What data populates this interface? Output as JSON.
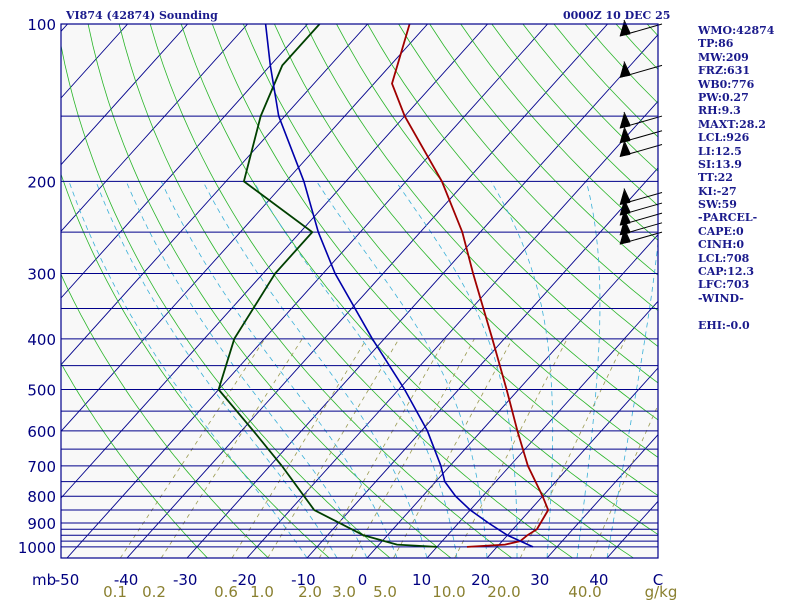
{
  "header": {
    "station": "VI874 (42874) Sounding",
    "time": "0000Z 10 DEC 25"
  },
  "panel": [
    "WMO:42874",
    "TP:86",
    "MW:209",
    "FRZ:631",
    "WB0:776",
    "PW:0.27",
    "RH:9.3",
    "MAXT:28.2",
    "LCL:926",
    "LI:12.5",
    "SI:13.9",
    "TT:22",
    "KI:-27",
    "SW:59",
    "-PARCEL-",
    "CAPE:0",
    "CINH:0",
    "LCL:708",
    "CAP:12.3",
    "LFC:703",
    "-WIND-",
    "",
    "EHI:-0.0"
  ],
  "colors": {
    "background": "#f8f8f8",
    "isobar": "#00008b",
    "isotherm": "#00008b",
    "dry_adiabat": "#2ab52a",
    "moist_adiabat": "#3ab0d8",
    "mixing_ratio": "#9a9a50",
    "temperature": "#a00000",
    "dewpoint": "#004000",
    "parcel": "#0000aa",
    "wind": "#000000",
    "axis_text": "#000080",
    "mixing_text": "#8a8030"
  },
  "chart_data": {
    "type": "line",
    "title": "",
    "xlabel": "",
    "ylabel": "mb",
    "pressure_ticks": [
      100,
      200,
      300,
      400,
      500,
      600,
      700,
      800,
      900,
      1000
    ],
    "isobars": [
      100,
      150,
      200,
      250,
      300,
      350,
      400,
      450,
      500,
      550,
      600,
      650,
      700,
      750,
      800,
      850,
      900,
      925,
      950,
      975,
      1000
    ],
    "temperature_ticks": [
      "-50",
      "-40",
      "-30",
      "-20",
      "-10",
      "0",
      "10",
      "20",
      "30",
      "40",
      "C"
    ],
    "mixing_ratio_labels": [
      "0.1",
      "0.2",
      "0.6",
      "1.0",
      "2.0",
      "3.0",
      "5.0",
      "10.0",
      "20.0",
      "40.0",
      "g/kg"
    ],
    "unit_label": "mb",
    "series": [
      {
        "key": "temperature",
        "points": [
          [
            1000,
            15.0
          ],
          [
            990,
            21.0
          ],
          [
            975,
            23.0
          ],
          [
            950,
            23.3
          ],
          [
            925,
            24.0
          ],
          [
            850,
            23.0
          ],
          [
            800,
            20.0
          ],
          [
            700,
            13.0
          ],
          [
            600,
            6.0
          ],
          [
            500,
            -2.0
          ],
          [
            400,
            -12.0
          ],
          [
            300,
            -25.0
          ],
          [
            250,
            -33.0
          ],
          [
            200,
            -44.0
          ],
          [
            150,
            -60.0
          ],
          [
            130,
            -67.0
          ],
          [
            100,
            -73.0
          ]
        ]
      },
      {
        "key": "dewpoint",
        "points": [
          [
            1000,
            10.0
          ],
          [
            990,
            3.0
          ],
          [
            950,
            -4.0
          ],
          [
            850,
            -16.0
          ],
          [
            700,
            -28.0
          ],
          [
            600,
            -38.0
          ],
          [
            500,
            -50.0
          ],
          [
            400,
            -55.0
          ],
          [
            300,
            -58.0
          ],
          [
            250,
            -58.0
          ],
          [
            200,
            -77.0
          ],
          [
            150,
            -84.0
          ],
          [
            120,
            -88.0
          ],
          [
            100,
            -88.0
          ]
        ]
      },
      {
        "key": "parcel",
        "points": [
          [
            1000,
            26.0
          ],
          [
            950,
            20.0
          ],
          [
            900,
            15.0
          ],
          [
            850,
            10.0
          ],
          [
            800,
            5.5
          ],
          [
            750,
            1.5
          ],
          [
            700,
            -1.5
          ],
          [
            600,
            -9.0
          ],
          [
            500,
            -19.0
          ],
          [
            400,
            -32.0
          ],
          [
            300,
            -48.0
          ],
          [
            250,
            -57.0
          ],
          [
            200,
            -67.0
          ],
          [
            150,
            -81.0
          ],
          [
            120,
            -90.0
          ],
          [
            100,
            -97.0
          ]
        ]
      }
    ],
    "wind_pressures": [
      100,
      120,
      150,
      160,
      170,
      210,
      220,
      230,
      240,
      250
    ],
    "grid": true
  }
}
